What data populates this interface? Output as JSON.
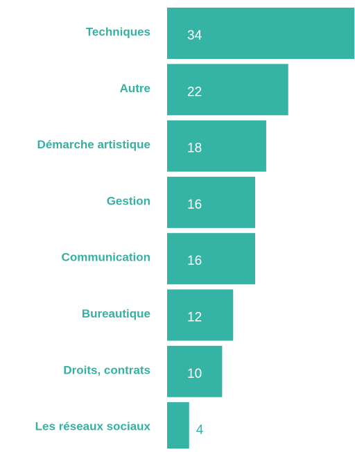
{
  "chart_data": {
    "type": "bar",
    "orientation": "horizontal",
    "categories": [
      "Techniques",
      "Autre",
      "Démarche artistique",
      "Gestion",
      "Communication",
      "Bureautique",
      "Droits, contrats",
      "Les réseaux sociaux"
    ],
    "values": [
      34,
      22,
      18,
      16,
      16,
      12,
      10,
      4
    ],
    "color": "#35b3a5"
  }
}
